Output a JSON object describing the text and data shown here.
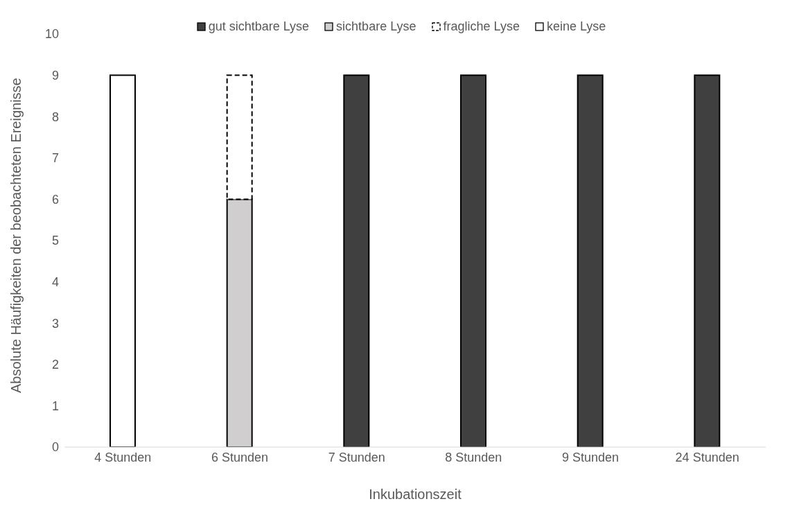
{
  "chart_data": {
    "type": "bar",
    "stacked": true,
    "xlabel": "Inkubationszeit",
    "ylabel": "Absolute Häufigkeiten der beobachteten Ereignisse",
    "categories": [
      "4 Stunden",
      "6 Stunden",
      "7 Stunden",
      "8 Stunden",
      "9 Stunden",
      "24 Stunden"
    ],
    "series": [
      {
        "name": "gut sichtbare Lyse",
        "color": "#404040",
        "values": [
          0,
          0,
          9,
          9,
          9,
          9
        ]
      },
      {
        "name": "sichtbare Lyse",
        "color": "#d0cece",
        "values": [
          0,
          6,
          0,
          0,
          0,
          0
        ]
      },
      {
        "name": "fragliche Lyse",
        "color": "#ffffff",
        "line_style": "dashed",
        "values": [
          0,
          3,
          0,
          0,
          0,
          0
        ]
      },
      {
        "name": "keine Lyse",
        "color": "#ffffff",
        "values": [
          9,
          0,
          0,
          0,
          0,
          0
        ]
      }
    ],
    "ylim": [
      0,
      10
    ],
    "yticks": [
      0,
      1,
      2,
      3,
      4,
      5,
      6,
      7,
      8,
      9,
      10
    ],
    "grid": false,
    "legend": "top"
  }
}
